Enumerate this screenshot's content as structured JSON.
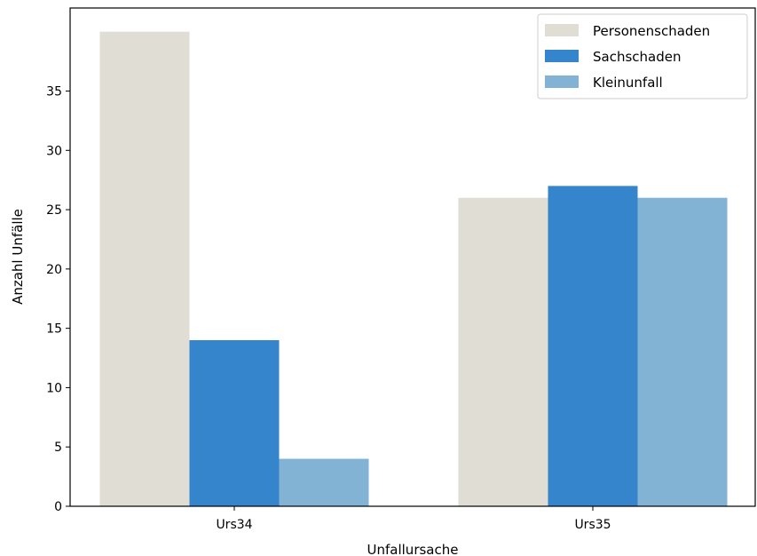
{
  "chart_data": {
    "type": "bar",
    "categories": [
      "Urs34",
      "Urs35"
    ],
    "series": [
      {
        "name": "Personenschaden",
        "values": [
          40,
          26
        ],
        "color": "#e0ddd5"
      },
      {
        "name": "Sachschaden",
        "values": [
          14,
          27
        ],
        "color": "#3585cc"
      },
      {
        "name": "Kleinunfall",
        "values": [
          4,
          26
        ],
        "color": "#82b2d4"
      }
    ],
    "xlabel": "Unfallursache",
    "ylabel": "Anzahl Unfälle",
    "ylim": [
      0,
      42
    ],
    "yticks": [
      0,
      5,
      10,
      15,
      20,
      25,
      30,
      35
    ],
    "grid": false,
    "legend_position": "top-right"
  }
}
